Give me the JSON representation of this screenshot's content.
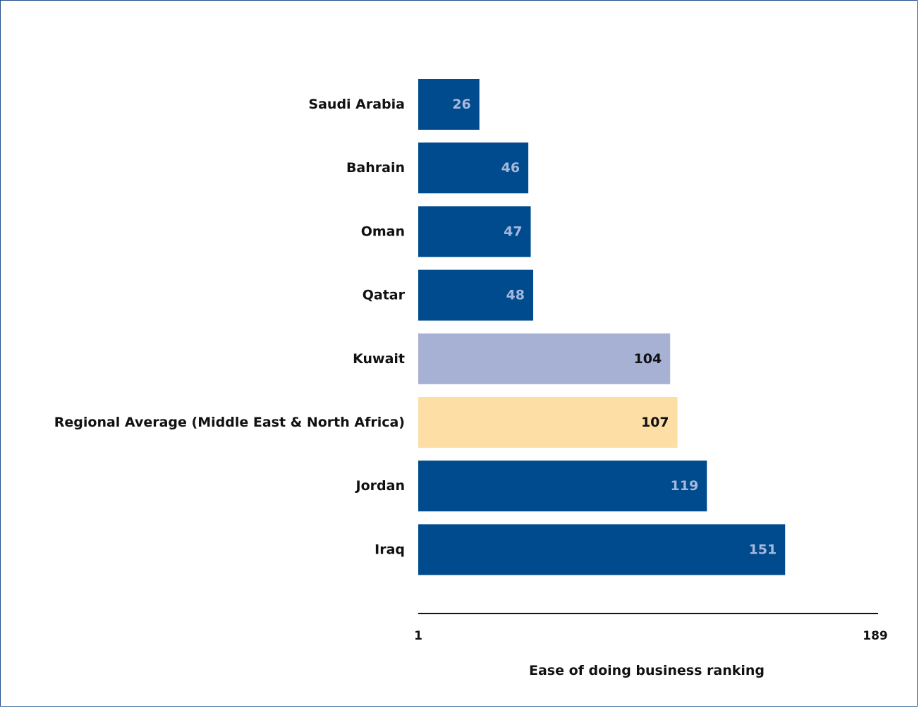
{
  "chart_data": {
    "type": "bar",
    "orientation": "horizontal",
    "categories": [
      "Saudi Arabia",
      "Bahrain",
      "Oman",
      "Qatar",
      "Kuwait",
      "Regional Average (Middle East & North Africa)",
      "Jordan",
      "Iraq"
    ],
    "values": [
      26,
      46,
      47,
      48,
      104,
      107,
      119,
      151
    ],
    "value_labels": [
      "26",
      "46",
      "47",
      "48",
      "104",
      "107",
      "119",
      "151"
    ],
    "bar_colors": [
      "#004b8d",
      "#004b8d",
      "#004b8d",
      "#004b8d",
      "#a6b1d4",
      "#fddfa6",
      "#004b8d",
      "#004b8d"
    ],
    "label_colors": [
      "#a6b8dc",
      "#a6b8dc",
      "#a6b8dc",
      "#a6b8dc",
      "#111111",
      "#111111",
      "#a6b8dc",
      "#a6b8dc"
    ],
    "xlim": [
      1,
      189
    ],
    "x_ticks": [
      "1",
      "189"
    ],
    "xlabel": "Ease of doing business ranking",
    "grid": false,
    "legend": "none"
  }
}
